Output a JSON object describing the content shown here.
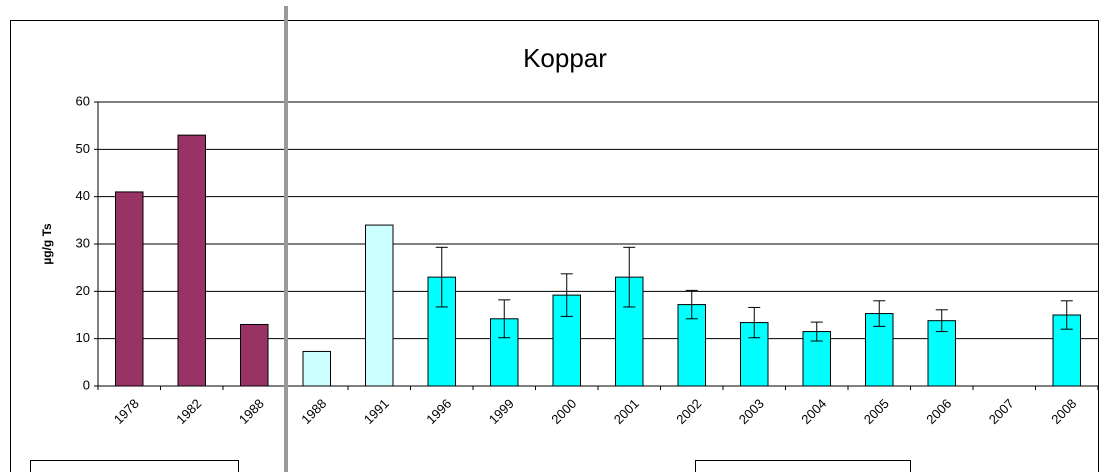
{
  "chart_data": {
    "type": "bar",
    "title": "Koppar",
    "y_label": "µg/g Ts",
    "categories": [
      "1978",
      "1982",
      "1988",
      "1988",
      "1991",
      "1996",
      "1999",
      "2000",
      "2001",
      "2002",
      "2003",
      "2004",
      "2005",
      "2006",
      "2007",
      "2008"
    ],
    "values": [
      41,
      53,
      13,
      7.3,
      34,
      23,
      14.2,
      19.2,
      23,
      17.2,
      13.4,
      11.5,
      15.3,
      13.8,
      null,
      15
    ],
    "errors": [
      null,
      null,
      null,
      null,
      null,
      6.3,
      4,
      4.5,
      6.3,
      3,
      3.2,
      2,
      2.7,
      2.3,
      null,
      3
    ],
    "colors": [
      "#993366",
      "#993366",
      "#993366",
      "#ccffff",
      "#ccffff",
      "#00ffff",
      "#00ffff",
      "#00ffff",
      "#00ffff",
      "#00ffff",
      "#00ffff",
      "#00ffff",
      "#00ffff",
      "#00ffff",
      "#00ffff",
      "#00ffff"
    ],
    "ylim": [
      0,
      60
    ],
    "yticks": [
      0,
      10,
      20,
      30,
      40,
      50,
      60
    ],
    "grid": true
  }
}
